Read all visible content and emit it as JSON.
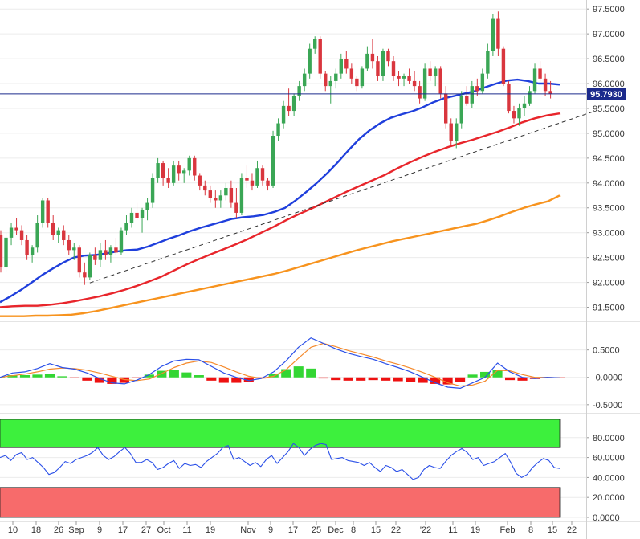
{
  "chart_data": [
    {
      "panel": "price",
      "type": "candlestick",
      "ylim": [
        91.25,
        97.6
      ],
      "yticks": [
        "97.5000",
        "97.0000",
        "96.5000",
        "96.0000",
        "95.5000",
        "95.0000",
        "94.5000",
        "94.0000",
        "93.5000",
        "93.0000",
        "92.5000",
        "92.0000",
        "91.5000"
      ],
      "yticks_values": [
        97.5,
        97.0,
        96.5,
        96.0,
        95.5,
        95.0,
        94.5,
        94.0,
        93.5,
        93.0,
        92.5,
        92.0,
        91.5
      ],
      "last_price_label": "95.7930",
      "last_price": 95.793,
      "colors": {
        "up": "#3aa655",
        "down": "#d9363e",
        "ma_fast": "#1f3fdc",
        "ma_mid": "#e8252b",
        "ma_slow": "#f7931e",
        "trend": "#333333",
        "last_line": "#1b2a8c",
        "last_label_bg": "#1b2a8c"
      },
      "candles": [
        [
          92.95,
          93.05,
          92.2,
          92.3
        ],
        [
          92.3,
          93.0,
          92.2,
          92.9
        ],
        [
          92.9,
          93.2,
          92.75,
          93.1
        ],
        [
          93.1,
          93.3,
          92.95,
          93.05
        ],
        [
          93.05,
          93.15,
          92.75,
          92.85
        ],
        [
          92.85,
          92.95,
          92.45,
          92.55
        ],
        [
          92.55,
          92.75,
          92.4,
          92.7
        ],
        [
          92.7,
          93.35,
          92.6,
          93.2
        ],
        [
          93.2,
          93.7,
          93.1,
          93.65
        ],
        [
          93.65,
          93.7,
          93.1,
          93.2
        ],
        [
          93.2,
          93.35,
          92.85,
          92.95
        ],
        [
          92.95,
          93.1,
          92.8,
          93.05
        ],
        [
          93.05,
          93.15,
          92.75,
          92.85
        ],
        [
          92.85,
          92.95,
          92.55,
          92.65
        ],
        [
          92.65,
          92.8,
          92.45,
          92.7
        ],
        [
          92.7,
          92.75,
          92.1,
          92.2
        ],
        [
          92.2,
          92.4,
          91.95,
          92.1
        ],
        [
          92.1,
          92.6,
          92.05,
          92.55
        ],
        [
          92.55,
          92.7,
          92.35,
          92.45
        ],
        [
          92.45,
          92.8,
          92.3,
          92.65
        ],
        [
          92.65,
          92.85,
          92.45,
          92.55
        ],
        [
          92.55,
          92.75,
          92.4,
          92.7
        ],
        [
          92.7,
          92.9,
          92.55,
          92.6
        ],
        [
          92.6,
          93.1,
          92.55,
          93.05
        ],
        [
          93.05,
          93.35,
          92.95,
          93.2
        ],
        [
          93.2,
          93.5,
          93.1,
          93.4
        ],
        [
          93.4,
          93.6,
          93.25,
          93.3
        ],
        [
          93.3,
          93.5,
          93.0,
          93.45
        ],
        [
          93.45,
          93.7,
          93.25,
          93.6
        ],
        [
          93.6,
          94.2,
          93.5,
          94.1
        ],
        [
          94.1,
          94.5,
          94.0,
          94.4
        ],
        [
          94.4,
          94.45,
          93.95,
          94.1
        ],
        [
          94.1,
          94.3,
          93.9,
          94.0
        ],
        [
          94.0,
          94.45,
          93.95,
          94.35
        ],
        [
          94.35,
          94.45,
          94.05,
          94.2
        ],
        [
          94.2,
          94.3,
          94.0,
          94.25
        ],
        [
          94.25,
          94.55,
          94.15,
          94.5
        ],
        [
          94.5,
          94.55,
          94.05,
          94.15
        ],
        [
          94.15,
          94.2,
          93.85,
          93.95
        ],
        [
          93.95,
          94.05,
          93.75,
          93.85
        ],
        [
          93.85,
          93.95,
          93.6,
          93.7
        ],
        [
          93.7,
          93.85,
          93.5,
          93.65
        ],
        [
          93.65,
          93.85,
          93.5,
          93.75
        ],
        [
          93.75,
          94.0,
          93.65,
          93.9
        ],
        [
          93.9,
          94.05,
          93.5,
          93.6
        ],
        [
          93.6,
          93.9,
          93.3,
          93.4
        ],
        [
          93.4,
          94.2,
          93.35,
          94.1
        ],
        [
          94.1,
          94.35,
          93.9,
          94.05
        ],
        [
          94.05,
          94.2,
          93.85,
          93.95
        ],
        [
          93.95,
          94.45,
          93.9,
          94.3
        ],
        [
          94.3,
          94.35,
          93.95,
          94.05
        ],
        [
          94.05,
          94.1,
          93.85,
          93.95
        ],
        [
          93.95,
          95.05,
          93.9,
          94.95
        ],
        [
          94.95,
          95.3,
          94.85,
          95.2
        ],
        [
          95.2,
          95.65,
          95.1,
          95.55
        ],
        [
          95.55,
          95.9,
          95.35,
          95.45
        ],
        [
          95.45,
          95.8,
          95.35,
          95.75
        ],
        [
          95.75,
          96.05,
          95.65,
          95.95
        ],
        [
          95.95,
          96.3,
          95.85,
          96.2
        ],
        [
          96.2,
          96.8,
          96.1,
          96.7
        ],
        [
          96.7,
          96.95,
          96.6,
          96.9
        ],
        [
          96.9,
          96.95,
          96.1,
          96.2
        ],
        [
          96.2,
          96.25,
          95.85,
          95.95
        ],
        [
          95.95,
          96.15,
          95.6,
          96.05
        ],
        [
          96.05,
          96.3,
          95.9,
          96.2
        ],
        [
          96.2,
          96.6,
          96.1,
          96.5
        ],
        [
          96.5,
          96.65,
          96.2,
          96.3
        ],
        [
          96.3,
          96.4,
          96.0,
          96.1
        ],
        [
          96.1,
          96.15,
          95.85,
          95.95
        ],
        [
          95.95,
          96.35,
          95.9,
          96.3
        ],
        [
          96.3,
          96.75,
          96.25,
          96.6
        ],
        [
          96.6,
          96.9,
          96.3,
          96.45
        ],
        [
          96.45,
          96.55,
          96.05,
          96.15
        ],
        [
          96.15,
          96.7,
          96.05,
          96.65
        ],
        [
          96.65,
          96.7,
          96.35,
          96.45
        ],
        [
          96.45,
          96.55,
          96.05,
          96.15
        ],
        [
          96.15,
          96.25,
          95.95,
          96.1
        ],
        [
          96.1,
          96.2,
          95.95,
          96.15
        ],
        [
          96.15,
          96.3,
          96.0,
          96.05
        ],
        [
          96.05,
          96.25,
          95.85,
          95.95
        ],
        [
          95.95,
          96.05,
          95.6,
          95.7
        ],
        [
          95.7,
          96.4,
          95.65,
          96.3
        ],
        [
          96.3,
          96.45,
          96.05,
          96.15
        ],
        [
          96.15,
          96.35,
          95.95,
          96.3
        ],
        [
          96.3,
          96.35,
          95.7,
          95.8
        ],
        [
          95.8,
          95.95,
          95.1,
          95.2
        ],
        [
          95.2,
          95.3,
          94.75,
          94.85
        ],
        [
          94.85,
          95.3,
          94.7,
          95.2
        ],
        [
          95.2,
          95.85,
          95.1,
          95.75
        ],
        [
          95.75,
          95.95,
          95.55,
          95.6
        ],
        [
          95.6,
          96.05,
          95.5,
          95.95
        ],
        [
          95.95,
          96.1,
          95.75,
          95.85
        ],
        [
          95.85,
          96.3,
          95.8,
          96.2
        ],
        [
          96.2,
          96.8,
          96.1,
          96.65
        ],
        [
          96.65,
          97.4,
          96.55,
          97.3
        ],
        [
          97.3,
          97.45,
          96.55,
          96.7
        ],
        [
          96.7,
          96.75,
          95.95,
          96.0
        ],
        [
          96.0,
          96.05,
          95.4,
          95.45
        ],
        [
          95.45,
          95.55,
          95.2,
          95.3
        ],
        [
          95.3,
          95.6,
          95.15,
          95.5
        ],
        [
          95.5,
          95.75,
          95.35,
          95.6
        ],
        [
          95.6,
          95.95,
          95.55,
          95.85
        ],
        [
          95.85,
          96.4,
          95.8,
          96.3
        ],
        [
          96.3,
          96.45,
          96.05,
          96.1
        ],
        [
          96.1,
          96.2,
          95.75,
          95.85
        ],
        [
          95.85,
          96.05,
          95.7,
          95.79
        ]
      ],
      "ma_fast": [
        91.6,
        91.72,
        91.85,
        92.0,
        92.15,
        92.28,
        92.4,
        92.5,
        92.54,
        92.55,
        92.58,
        92.62,
        92.65,
        92.66,
        92.72,
        92.8,
        92.88,
        92.95,
        93.03,
        93.1,
        93.16,
        93.22,
        93.28,
        93.31,
        93.33,
        93.36,
        93.42,
        93.5,
        93.65,
        93.82,
        94.0,
        94.2,
        94.42,
        94.66,
        94.88,
        95.06,
        95.2,
        95.31,
        95.38,
        95.44,
        95.52,
        95.62,
        95.7,
        95.75,
        95.8,
        95.85,
        95.93,
        96.0,
        96.06,
        96.08,
        96.05,
        96.0,
        96.0,
        95.98
      ],
      "ma_mid": [
        91.5,
        91.52,
        91.53,
        91.53,
        91.55,
        91.58,
        91.62,
        91.67,
        91.72,
        91.78,
        91.85,
        91.93,
        92.02,
        92.12,
        92.24,
        92.36,
        92.47,
        92.57,
        92.67,
        92.77,
        92.88,
        93.0,
        93.12,
        93.25,
        93.37,
        93.48,
        93.6,
        93.72,
        93.84,
        93.95,
        94.06,
        94.17,
        94.3,
        94.42,
        94.53,
        94.63,
        94.72,
        94.8,
        94.87,
        94.95,
        95.03,
        95.12,
        95.22,
        95.3,
        95.36,
        95.4
      ],
      "ma_slow": [
        91.32,
        91.32,
        91.32,
        91.33,
        91.33,
        91.34,
        91.35,
        91.38,
        91.42,
        91.47,
        91.52,
        91.57,
        91.62,
        91.67,
        91.72,
        91.77,
        91.82,
        91.87,
        91.92,
        91.97,
        92.02,
        92.07,
        92.12,
        92.17,
        92.23,
        92.3,
        92.37,
        92.44,
        92.51,
        92.58,
        92.65,
        92.71,
        92.77,
        92.83,
        92.88,
        92.93,
        92.98,
        93.03,
        93.08,
        93.13,
        93.18,
        93.25,
        93.33,
        93.42,
        93.5,
        93.57,
        93.63,
        93.75
      ],
      "trend_from": [
        17,
        91.99
      ],
      "trend_to": [
        113,
        95.43
      ]
    },
    {
      "panel": "macd",
      "type": "line+histogram",
      "ylim": [
        -0.62,
        0.95
      ],
      "yticks": [
        "0.5000",
        "-0.0000",
        "-0.5000"
      ],
      "yticks_values": [
        0.5,
        0.0,
        -0.5
      ],
      "colors": {
        "macd": "#2b50e8",
        "signal": "#f58a2c",
        "hist_pos": "#33d633",
        "hist_neg": "#ee1111"
      },
      "macd": [
        0.0,
        0.08,
        0.1,
        0.16,
        0.25,
        0.18,
        0.15,
        0.08,
        -0.02,
        -0.1,
        -0.12,
        -0.05,
        0.05,
        0.2,
        0.3,
        0.33,
        0.32,
        0.2,
        0.08,
        0.0,
        -0.06,
        -0.02,
        0.1,
        0.3,
        0.55,
        0.72,
        0.62,
        0.52,
        0.44,
        0.38,
        0.33,
        0.25,
        0.18,
        0.1,
        0.0,
        -0.1,
        -0.18,
        -0.2,
        -0.1,
        0.0,
        0.26,
        0.1,
        0.0,
        -0.02,
        0.0,
        -0.01
      ],
      "signal": [
        0.0,
        0.03,
        0.06,
        0.1,
        0.15,
        0.17,
        0.16,
        0.13,
        0.08,
        0.02,
        -0.04,
        -0.06,
        -0.03,
        0.07,
        0.18,
        0.26,
        0.3,
        0.27,
        0.19,
        0.1,
        0.02,
        -0.02,
        0.02,
        0.14,
        0.35,
        0.55,
        0.62,
        0.56,
        0.49,
        0.43,
        0.37,
        0.3,
        0.24,
        0.17,
        0.09,
        0.0,
        -0.1,
        -0.16,
        -0.14,
        -0.07,
        0.13,
        0.12,
        0.05,
        0.0,
        0.0,
        -0.01
      ],
      "histogram": [
        0.0,
        0.04,
        0.04,
        0.05,
        0.06,
        0.02,
        -0.01,
        -0.06,
        -0.1,
        -0.12,
        -0.1,
        -0.01,
        0.05,
        0.12,
        0.14,
        0.09,
        0.04,
        -0.06,
        -0.1,
        -0.1,
        -0.08,
        -0.02,
        0.07,
        0.15,
        0.2,
        0.16,
        -0.02,
        -0.05,
        -0.06,
        -0.06,
        -0.05,
        -0.06,
        -0.07,
        -0.08,
        -0.1,
        -0.12,
        -0.13,
        -0.08,
        0.05,
        0.1,
        0.14,
        -0.05,
        -0.06,
        -0.03,
        -0.01,
        -0.01
      ]
    },
    {
      "panel": "rsi",
      "type": "line",
      "ylim": [
        0,
        100
      ],
      "yticks": [
        "80.0000",
        "60.0000",
        "40.0000",
        "20.0000",
        "0.0000"
      ],
      "yticks_values": [
        80,
        60,
        40,
        20,
        0
      ],
      "overbought": 70,
      "oversold": 30,
      "colors": {
        "line": "#2b50e8",
        "overbought_fill": "#3df03d",
        "oversold_fill": "#f76b6b"
      },
      "values": [
        60,
        62,
        57,
        63,
        65,
        58,
        60,
        55,
        50,
        43,
        45,
        50,
        56,
        54,
        58,
        60,
        62,
        65,
        70,
        62,
        58,
        61,
        66,
        70,
        64,
        55,
        55,
        58,
        55,
        48,
        50,
        54,
        57,
        49,
        54,
        52,
        53,
        50,
        56,
        60,
        64,
        70,
        72,
        58,
        60,
        56,
        52,
        55,
        51,
        58,
        62,
        54,
        60,
        66,
        74,
        70,
        62,
        68,
        72,
        74,
        73,
        58,
        59,
        60,
        57,
        56,
        55,
        52,
        55,
        50,
        46,
        52,
        50,
        46,
        48,
        43,
        38,
        40,
        48,
        52,
        50,
        49,
        56,
        62,
        66,
        69,
        65,
        58,
        60,
        52,
        54,
        56,
        60,
        64,
        55,
        44,
        40,
        43,
        50,
        55,
        59,
        57,
        50,
        49
      ]
    }
  ],
  "x_axis": {
    "ticks": [
      "10",
      "18",
      "26",
      "Sep",
      "9",
      "17",
      "27",
      "Oct",
      "11",
      "19",
      "Nov",
      "9",
      "17",
      "25",
      "Dec",
      "8",
      "15",
      "22",
      "'22",
      "11",
      "19",
      "Feb",
      "8",
      "15",
      "22"
    ]
  }
}
